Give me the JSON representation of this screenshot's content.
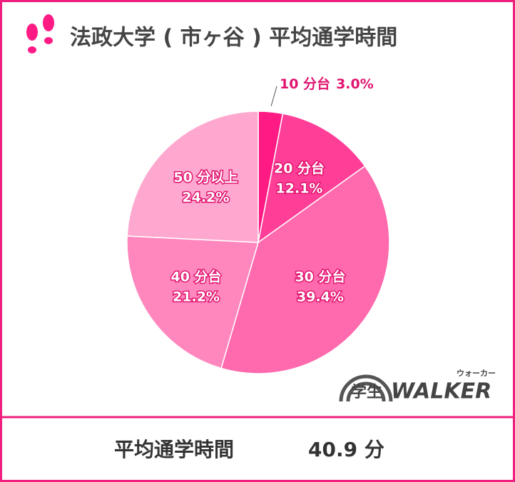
{
  "chart_data": {
    "type": "pie",
    "title": "法政大学 ( 市ヶ谷 ) 平均通学時間",
    "categories": [
      "10 分台",
      "20 分台",
      "30 分台",
      "40 分台",
      "50 分以上"
    ],
    "values": [
      3.0,
      12.1,
      39.4,
      21.2,
      24.2
    ],
    "value_labels": [
      "3.0%",
      "12.1%",
      "39.4%",
      "21.2%",
      "24.2%"
    ],
    "colors": [
      "#ff1a84",
      "#ff3e98",
      "#ff69ad",
      "#ff87be",
      "#ffa8cf"
    ]
  },
  "footer": {
    "label": "平均通学時間",
    "value": "40.9 分"
  },
  "logo": {
    "kanji": "学生",
    "brand": "WALKER",
    "kana": "ウォーカー"
  }
}
